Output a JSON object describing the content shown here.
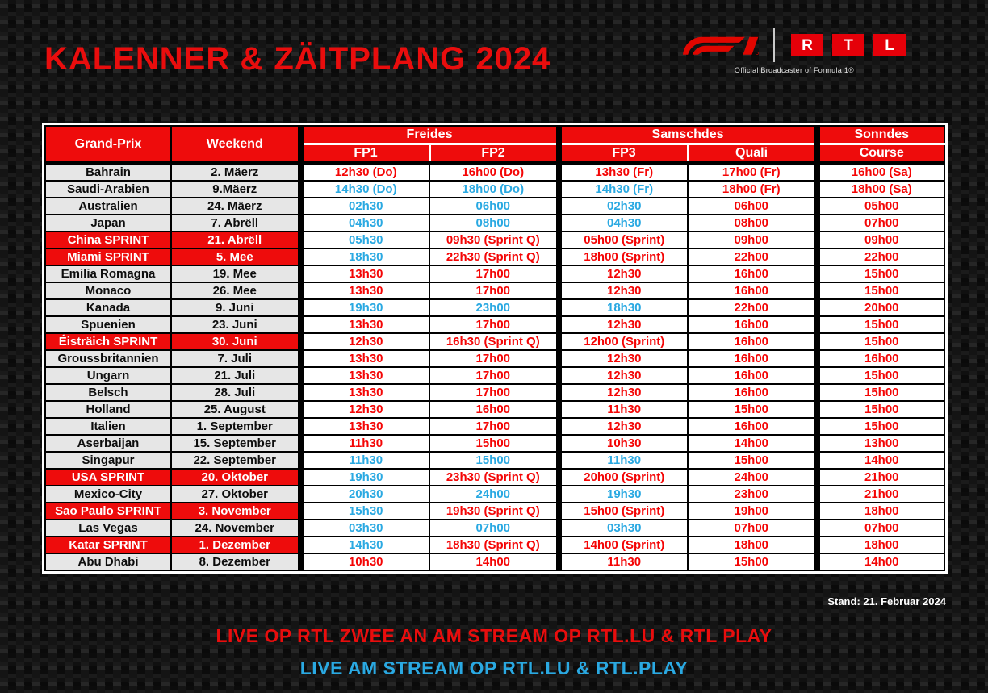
{
  "title": "KALENNER & ZÄITPLANG 2024",
  "logos": {
    "f1_alt": "F1",
    "rtl_letters": [
      "R",
      "T",
      "L"
    ],
    "tagline": "Official Broadcaster of Formula 1®"
  },
  "colors": {
    "brand_red": "#ee0c0c",
    "time_red": "#f40505",
    "time_blue": "#2aa9e2",
    "row_gray": "#e6e6e6",
    "header_text": "#ffffff"
  },
  "table": {
    "headers": {
      "grand_prix": "Grand-Prix",
      "weekend": "Weekend",
      "groups": [
        {
          "label": "Freides",
          "cols": [
            "FP1",
            "FP2"
          ]
        },
        {
          "label": "Samschdes",
          "cols": [
            "FP3",
            "Quali"
          ]
        },
        {
          "label": "Sonndes",
          "cols": [
            "Course"
          ]
        }
      ]
    },
    "rows": [
      {
        "gp": "Bahrain",
        "weekend": "2. Mäerz",
        "sprint": false,
        "times": [
          {
            "v": "12h30 (Do)",
            "c": "r"
          },
          {
            "v": "16h00 (Do)",
            "c": "r"
          },
          {
            "v": "13h30 (Fr)",
            "c": "r"
          },
          {
            "v": "17h00 (Fr)",
            "c": "r"
          },
          {
            "v": "16h00 (Sa)",
            "c": "r"
          }
        ]
      },
      {
        "gp": "Saudi-Arabien",
        "weekend": "9.Mäerz",
        "sprint": false,
        "times": [
          {
            "v": "14h30 (Do)",
            "c": "b"
          },
          {
            "v": "18h00 (Do)",
            "c": "b"
          },
          {
            "v": "14h30 (Fr)",
            "c": "b"
          },
          {
            "v": "18h00 (Fr)",
            "c": "r"
          },
          {
            "v": "18h00 (Sa)",
            "c": "r"
          }
        ]
      },
      {
        "gp": "Australien",
        "weekend": "24. Mäerz",
        "sprint": false,
        "times": [
          {
            "v": "02h30",
            "c": "b"
          },
          {
            "v": "06h00",
            "c": "b"
          },
          {
            "v": "02h30",
            "c": "b"
          },
          {
            "v": "06h00",
            "c": "r"
          },
          {
            "v": "05h00",
            "c": "r"
          }
        ]
      },
      {
        "gp": "Japan",
        "weekend": "7. Abrëll",
        "sprint": false,
        "times": [
          {
            "v": "04h30",
            "c": "b"
          },
          {
            "v": "08h00",
            "c": "b"
          },
          {
            "v": "04h30",
            "c": "b"
          },
          {
            "v": "08h00",
            "c": "r"
          },
          {
            "v": "07h00",
            "c": "r"
          }
        ]
      },
      {
        "gp": "China SPRINT",
        "weekend": "21. Abrëll",
        "sprint": true,
        "times": [
          {
            "v": "05h30",
            "c": "b"
          },
          {
            "v": "09h30 (Sprint Q)",
            "c": "r"
          },
          {
            "v": "05h00 (Sprint)",
            "c": "r"
          },
          {
            "v": "09h00",
            "c": "r"
          },
          {
            "v": "09h00",
            "c": "r"
          }
        ]
      },
      {
        "gp": "Miami SPRINT",
        "weekend": "5. Mee",
        "sprint": true,
        "times": [
          {
            "v": "18h30",
            "c": "b"
          },
          {
            "v": "22h30 (Sprint Q)",
            "c": "r"
          },
          {
            "v": "18h00 (Sprint)",
            "c": "r"
          },
          {
            "v": "22h00",
            "c": "r"
          },
          {
            "v": "22h00",
            "c": "r"
          }
        ]
      },
      {
        "gp": "Emilia Romagna",
        "weekend": "19. Mee",
        "sprint": false,
        "times": [
          {
            "v": "13h30",
            "c": "r"
          },
          {
            "v": "17h00",
            "c": "r"
          },
          {
            "v": "12h30",
            "c": "r"
          },
          {
            "v": "16h00",
            "c": "r"
          },
          {
            "v": "15h00",
            "c": "r"
          }
        ]
      },
      {
        "gp": "Monaco",
        "weekend": "26. Mee",
        "sprint": false,
        "times": [
          {
            "v": "13h30",
            "c": "r"
          },
          {
            "v": "17h00",
            "c": "r"
          },
          {
            "v": "12h30",
            "c": "r"
          },
          {
            "v": "16h00",
            "c": "r"
          },
          {
            "v": "15h00",
            "c": "r"
          }
        ]
      },
      {
        "gp": "Kanada",
        "weekend": "9. Juni",
        "sprint": false,
        "times": [
          {
            "v": "19h30",
            "c": "b"
          },
          {
            "v": "23h00",
            "c": "b"
          },
          {
            "v": "18h30",
            "c": "b"
          },
          {
            "v": "22h00",
            "c": "r"
          },
          {
            "v": "20h00",
            "c": "r"
          }
        ]
      },
      {
        "gp": "Spuenien",
        "weekend": "23. Juni",
        "sprint": false,
        "times": [
          {
            "v": "13h30",
            "c": "r"
          },
          {
            "v": "17h00",
            "c": "r"
          },
          {
            "v": "12h30",
            "c": "r"
          },
          {
            "v": "16h00",
            "c": "r"
          },
          {
            "v": "15h00",
            "c": "r"
          }
        ]
      },
      {
        "gp": "Éisträich SPRINT",
        "weekend": "30. Juni",
        "sprint": true,
        "times": [
          {
            "v": "12h30",
            "c": "r"
          },
          {
            "v": "16h30 (Sprint Q)",
            "c": "r"
          },
          {
            "v": "12h00 (Sprint)",
            "c": "r"
          },
          {
            "v": "16h00",
            "c": "r"
          },
          {
            "v": "15h00",
            "c": "r"
          }
        ]
      },
      {
        "gp": "Groussbritannien",
        "weekend": "7. Juli",
        "sprint": false,
        "times": [
          {
            "v": "13h30",
            "c": "r"
          },
          {
            "v": "17h00",
            "c": "r"
          },
          {
            "v": "12h30",
            "c": "r"
          },
          {
            "v": "16h00",
            "c": "r"
          },
          {
            "v": "16h00",
            "c": "r"
          }
        ]
      },
      {
        "gp": "Ungarn",
        "weekend": "21. Juli",
        "sprint": false,
        "times": [
          {
            "v": "13h30",
            "c": "r"
          },
          {
            "v": "17h00",
            "c": "r"
          },
          {
            "v": "12h30",
            "c": "r"
          },
          {
            "v": "16h00",
            "c": "r"
          },
          {
            "v": "15h00",
            "c": "r"
          }
        ]
      },
      {
        "gp": "Belsch",
        "weekend": "28. Juli",
        "sprint": false,
        "times": [
          {
            "v": "13h30",
            "c": "r"
          },
          {
            "v": "17h00",
            "c": "r"
          },
          {
            "v": "12h30",
            "c": "r"
          },
          {
            "v": "16h00",
            "c": "r"
          },
          {
            "v": "15h00",
            "c": "r"
          }
        ]
      },
      {
        "gp": "Holland",
        "weekend": "25. August",
        "sprint": false,
        "times": [
          {
            "v": "12h30",
            "c": "r"
          },
          {
            "v": "16h00",
            "c": "r"
          },
          {
            "v": "11h30",
            "c": "r"
          },
          {
            "v": "15h00",
            "c": "r"
          },
          {
            "v": "15h00",
            "c": "r"
          }
        ]
      },
      {
        "gp": "Italien",
        "weekend": "1. September",
        "sprint": false,
        "times": [
          {
            "v": "13h30",
            "c": "r"
          },
          {
            "v": "17h00",
            "c": "r"
          },
          {
            "v": "12h30",
            "c": "r"
          },
          {
            "v": "16h00",
            "c": "r"
          },
          {
            "v": "15h00",
            "c": "r"
          }
        ]
      },
      {
        "gp": "Aserbaijan",
        "weekend": "15. September",
        "sprint": false,
        "times": [
          {
            "v": "11h30",
            "c": "r"
          },
          {
            "v": "15h00",
            "c": "r"
          },
          {
            "v": "10h30",
            "c": "r"
          },
          {
            "v": "14h00",
            "c": "r"
          },
          {
            "v": "13h00",
            "c": "r"
          }
        ]
      },
      {
        "gp": "Singapur",
        "weekend": "22. September",
        "sprint": false,
        "times": [
          {
            "v": "11h30",
            "c": "b"
          },
          {
            "v": "15h00",
            "c": "b"
          },
          {
            "v": "11h30",
            "c": "b"
          },
          {
            "v": "15h00",
            "c": "r"
          },
          {
            "v": "14h00",
            "c": "r"
          }
        ]
      },
      {
        "gp": "USA SPRINT",
        "weekend": "20. Oktober",
        "sprint": true,
        "times": [
          {
            "v": "19h30",
            "c": "b"
          },
          {
            "v": "23h30 (Sprint Q)",
            "c": "r"
          },
          {
            "v": "20h00 (Sprint)",
            "c": "r"
          },
          {
            "v": "24h00",
            "c": "r"
          },
          {
            "v": "21h00",
            "c": "r"
          }
        ]
      },
      {
        "gp": "Mexico-City",
        "weekend": "27. Oktober",
        "sprint": false,
        "times": [
          {
            "v": "20h30",
            "c": "b"
          },
          {
            "v": "24h00",
            "c": "b"
          },
          {
            "v": "19h30",
            "c": "b"
          },
          {
            "v": "23h00",
            "c": "r"
          },
          {
            "v": "21h00",
            "c": "r"
          }
        ]
      },
      {
        "gp": "Sao Paulo SPRINT",
        "weekend": "3. November",
        "sprint": true,
        "times": [
          {
            "v": "15h30",
            "c": "b"
          },
          {
            "v": "19h30 (Sprint Q)",
            "c": "r"
          },
          {
            "v": "15h00 (Sprint)",
            "c": "r"
          },
          {
            "v": "19h00",
            "c": "r"
          },
          {
            "v": "18h00",
            "c": "r"
          }
        ]
      },
      {
        "gp": "Las Vegas",
        "weekend": "24. November",
        "sprint": false,
        "times": [
          {
            "v": "03h30",
            "c": "b"
          },
          {
            "v": "07h00",
            "c": "b"
          },
          {
            "v": "03h30",
            "c": "b"
          },
          {
            "v": "07h00",
            "c": "r"
          },
          {
            "v": "07h00",
            "c": "r"
          }
        ]
      },
      {
        "gp": "Katar SPRINT",
        "weekend": "1. Dezember",
        "sprint": true,
        "times": [
          {
            "v": "14h30",
            "c": "b"
          },
          {
            "v": "18h30 (Sprint Q)",
            "c": "r"
          },
          {
            "v": "14h00 (Sprint)",
            "c": "r"
          },
          {
            "v": "18h00",
            "c": "r"
          },
          {
            "v": "18h00",
            "c": "r"
          }
        ]
      },
      {
        "gp": "Abu Dhabi",
        "weekend": "8. Dezember",
        "sprint": false,
        "times": [
          {
            "v": "10h30",
            "c": "r"
          },
          {
            "v": "14h00",
            "c": "r"
          },
          {
            "v": "11h30",
            "c": "r"
          },
          {
            "v": "15h00",
            "c": "r"
          },
          {
            "v": "14h00",
            "c": "r"
          }
        ]
      }
    ]
  },
  "stand": "Stand: 21. Februar 2024",
  "footer": {
    "line1": {
      "text": "LIVE OP RTL ZWEE AN AM STREAM OP RTL.LU & RTL PLAY",
      "color": "#e90d0d"
    },
    "line2": {
      "text": "LIVE AM STREAM OP RTL.LU & RTL.PLAY",
      "color": "#2aa9e2"
    }
  }
}
